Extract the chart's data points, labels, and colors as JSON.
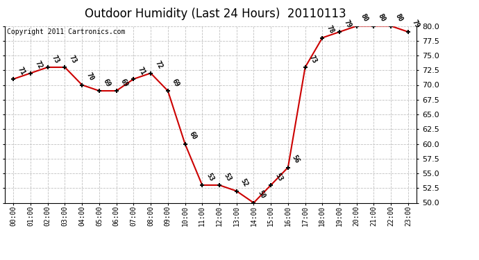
{
  "title": "Outdoor Humidity (Last 24 Hours)  20110113",
  "copyright": "Copyright 2011 Cartronics.com",
  "hours": [
    "00:00",
    "01:00",
    "02:00",
    "03:00",
    "04:00",
    "05:00",
    "06:00",
    "07:00",
    "08:00",
    "09:00",
    "10:00",
    "11:00",
    "12:00",
    "13:00",
    "14:00",
    "15:00",
    "16:00",
    "17:00",
    "18:00",
    "19:00",
    "20:00",
    "21:00",
    "22:00",
    "23:00"
  ],
  "x_numeric": [
    0,
    1,
    2,
    3,
    4,
    5,
    6,
    7,
    8,
    9,
    10,
    11,
    12,
    13,
    14,
    15,
    16,
    17,
    18,
    19,
    20,
    21,
    22,
    23
  ],
  "values": [
    71,
    72,
    73,
    73,
    70,
    69,
    69,
    71,
    72,
    69,
    60,
    53,
    53,
    52,
    50,
    53,
    56,
    73,
    78,
    79,
    80,
    80,
    80,
    79
  ],
  "ylim": [
    50.0,
    80.0
  ],
  "yticks": [
    50.0,
    52.5,
    55.0,
    57.5,
    60.0,
    62.5,
    65.0,
    67.5,
    70.0,
    72.5,
    75.0,
    77.5,
    80.0
  ],
  "line_color": "#cc0000",
  "bg_color": "#ffffff",
  "grid_color": "#c0c0c0",
  "title_fontsize": 12,
  "annotation_fontsize": 7,
  "copyright_fontsize": 7,
  "ytick_fontsize": 8,
  "xtick_fontsize": 7
}
